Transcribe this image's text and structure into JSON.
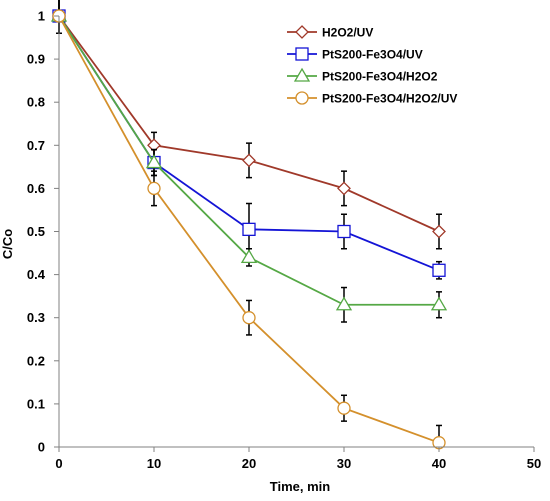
{
  "chart_data": {
    "type": "line",
    "title": "",
    "xlabel": "Time,  min",
    "ylabel": "C/Co",
    "xlim": [
      0,
      50
    ],
    "ylim": [
      0,
      1
    ],
    "x_ticks": [
      "0",
      "10",
      "20",
      "30",
      "40",
      "50"
    ],
    "y_ticks": [
      "0",
      "0.1",
      "0.2",
      "0.3",
      "0.4",
      "0.5",
      "0.6",
      "0.7",
      "0.8",
      "0.9",
      "1"
    ],
    "grid": false,
    "legend_position": "top-right",
    "x": [
      0,
      10,
      20,
      30,
      40
    ],
    "series": [
      {
        "name": "H2O2/UV",
        "marker": "diamond",
        "color": "#A0392A",
        "values": [
          1.0,
          0.7,
          0.665,
          0.6,
          0.5
        ],
        "error": [
          0.04,
          0.03,
          0.04,
          0.04,
          0.04
        ]
      },
      {
        "name": "PtS200-Fe3O4/UV",
        "marker": "square",
        "color": "#1414D6",
        "values": [
          1.0,
          0.66,
          0.505,
          0.5,
          0.41
        ],
        "error": [
          0.04,
          0.03,
          0.06,
          0.04,
          0.02
        ]
      },
      {
        "name": "PtS200-Fe3O4/H2O2",
        "marker": "triangle",
        "color": "#55A845",
        "values": [
          1.0,
          0.66,
          0.44,
          0.33,
          0.33
        ],
        "error": [
          0.04,
          0.03,
          0.02,
          0.04,
          0.03
        ]
      },
      {
        "name": "PtS200-Fe3O4/H2O2/UV",
        "marker": "circle",
        "color": "#D4902C",
        "values": [
          1.0,
          0.6,
          0.3,
          0.09,
          0.01
        ],
        "error": [
          0.04,
          0.04,
          0.04,
          0.03,
          0.04
        ]
      }
    ]
  }
}
